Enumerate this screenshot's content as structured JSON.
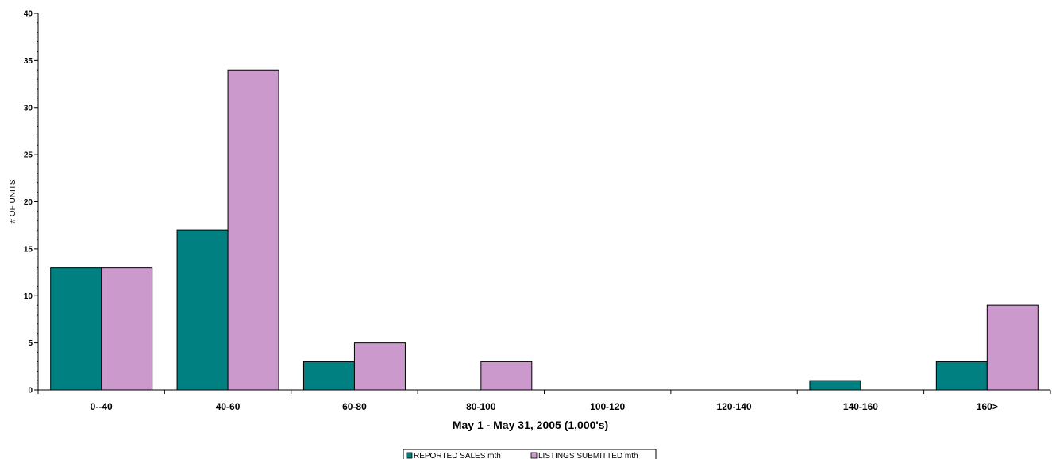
{
  "chart_data": {
    "type": "bar",
    "categories": [
      "0--40",
      "40-60",
      "60-80",
      "80-100",
      "100-120",
      "120-140",
      "140-160",
      "160>"
    ],
    "series": [
      {
        "name": "REPORTED SALES mth",
        "color": "#008080",
        "values": [
          13,
          17,
          3,
          0,
          0,
          0,
          1,
          3
        ]
      },
      {
        "name": "LISTINGS SUBMITTED mth",
        "color": "#cc99cc",
        "values": [
          13,
          34,
          5,
          3,
          0,
          0,
          0,
          9
        ]
      }
    ],
    "xlabel": "May 1 - May 31, 2005 (1,000's)",
    "ylabel": "# OF UNITS",
    "ylim": [
      0,
      40
    ],
    "yticks": [
      0,
      5,
      10,
      15,
      20,
      25,
      30,
      35,
      40
    ],
    "grid": false,
    "legend_position": "bottom-center"
  }
}
